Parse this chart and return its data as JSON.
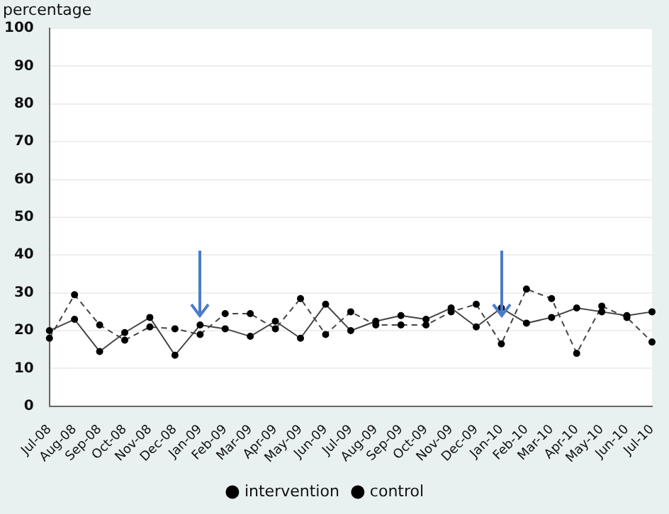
{
  "chart_data": {
    "type": "line",
    "ylabel": "percentage",
    "categories": [
      "Jul-08",
      "Aug-08",
      "Sep-08",
      "Oct-08",
      "Nov-08",
      "Dec-08",
      "Jan-09",
      "Feb-09",
      "Mar-09",
      "Apr-09",
      "May-09",
      "Jun-09",
      "Jul-09",
      "Aug-09",
      "Sep-09",
      "Oct-09",
      "Nov-09",
      "Dec-09",
      "Jan-10",
      "Feb-10",
      "Mar-10",
      "Apr-10",
      "May-10",
      "Jun-10",
      "Jul-10"
    ],
    "series": [
      {
        "name": "intervention",
        "color": "#444444",
        "line_style": "solid",
        "values": [
          20,
          23,
          14.5,
          19.5,
          23.5,
          13.5,
          21.5,
          20.5,
          18.5,
          22.5,
          18,
          27,
          20,
          22.5,
          24,
          23,
          26,
          21,
          26,
          22,
          23.5,
          26,
          25,
          24,
          25
        ]
      },
      {
        "name": "control",
        "color": "#444444",
        "line_style": "dashed",
        "values": [
          18,
          29.5,
          21.5,
          17.5,
          21,
          20.5,
          19,
          24.5,
          24.5,
          20.5,
          28.5,
          19,
          25,
          21.5,
          21.5,
          21.5,
          25,
          27,
          16.5,
          31,
          28.5,
          14,
          26.5,
          23.5,
          17
        ]
      }
    ],
    "ylim": [
      0,
      100
    ],
    "yticks": [
      0,
      10,
      20,
      30,
      40,
      50,
      60,
      70,
      80,
      90,
      100
    ],
    "grid": "y",
    "legend": "bottom",
    "marker": "circle"
  }
}
